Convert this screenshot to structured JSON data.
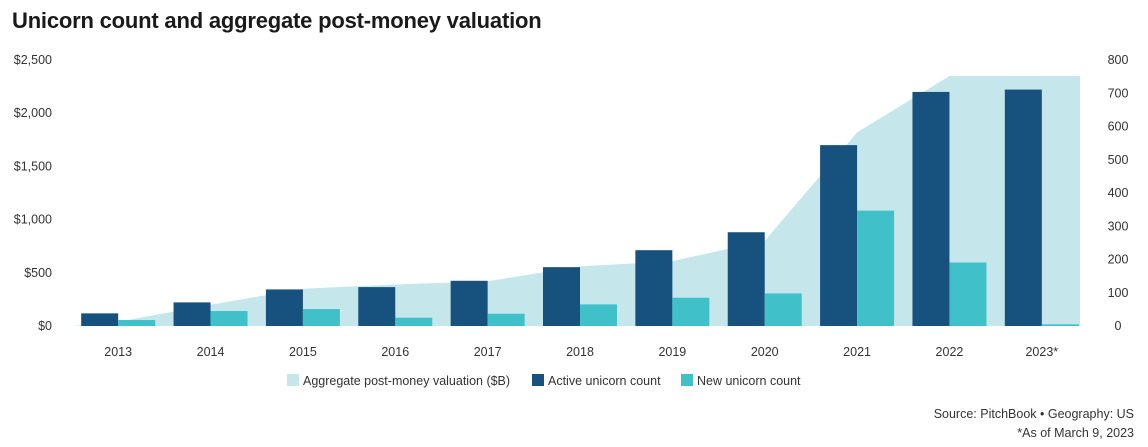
{
  "title": "Unicorn count and aggregate post-money valuation",
  "source": "Source: PitchBook  •  Geography: US",
  "footnote": "*As of March 9, 2023",
  "colors": {
    "valuation_area": "#c5e7ec",
    "active": "#17517e",
    "new": "#40c1c9"
  },
  "chart_data": {
    "type": "bar",
    "categories": [
      "2013",
      "2014",
      "2015",
      "2016",
      "2017",
      "2018",
      "2019",
      "2020",
      "2021",
      "2022",
      "2023*"
    ],
    "left_axis": {
      "ylim": [
        0,
        2500
      ],
      "ticks": [
        0,
        500,
        1000,
        1500,
        2000,
        2500
      ],
      "tick_labels": [
        "$0",
        "$500",
        "$1,000",
        "$1,500",
        "$2,000",
        "$2,500"
      ]
    },
    "right_axis": {
      "ylim": [
        0,
        800
      ],
      "ticks": [
        0,
        100,
        200,
        300,
        400,
        500,
        600,
        700,
        800
      ],
      "tick_labels": [
        "0",
        "100",
        "200",
        "300",
        "400",
        "500",
        "600",
        "700",
        "800"
      ]
    },
    "series": [
      {
        "name": "Aggregate post-money valuation ($B)",
        "type": "area",
        "axis": "left",
        "values": [
          40,
          200,
          350,
          390,
          420,
          560,
          610,
          800,
          1820,
          2350,
          2350
        ]
      },
      {
        "name": "Active unicorn count",
        "type": "bar",
        "axis": "right",
        "values": [
          38,
          71,
          110,
          117,
          136,
          177,
          228,
          282,
          544,
          704,
          711
        ]
      },
      {
        "name": "New unicorn count",
        "type": "bar",
        "axis": "right",
        "values": [
          18,
          45,
          51,
          25,
          37,
          65,
          85,
          98,
          347,
          191,
          5
        ]
      }
    ],
    "legend": [
      "Aggregate post-money valuation ($B)",
      "Active unicorn count",
      "New unicorn count"
    ],
    "legend_position": "bottom-center",
    "grid": false
  }
}
